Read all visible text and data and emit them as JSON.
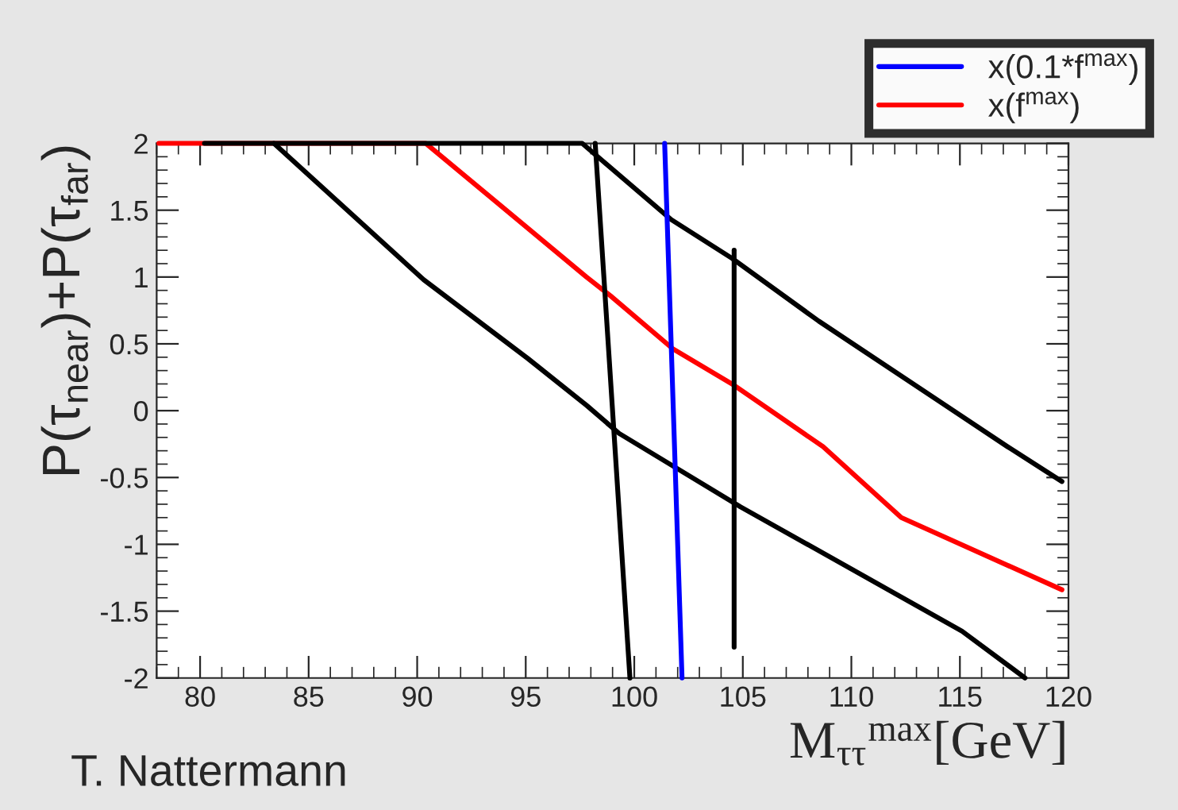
{
  "chart_data": {
    "type": "line",
    "xlabel": "M$_{ττ}$$^{max}$[GeV]",
    "ylabel": "P(τ$_{near}$)+P(τ$_{far}$)",
    "annotations": [
      "T. Nattermann"
    ],
    "xlim": [
      78,
      120
    ],
    "ylim": [
      -2,
      2
    ],
    "xticks": [
      80,
      85,
      90,
      95,
      100,
      105,
      110,
      115,
      120
    ],
    "yticks": [
      -2,
      -1.5,
      -1,
      -0.5,
      0,
      0.5,
      1,
      1.5,
      2
    ],
    "grid": false,
    "legend": "top right",
    "marker": "none",
    "line_style": "solid",
    "series": [
      {
        "color": "#ff0000",
        "x": [
          78.1,
          80.2,
          90.4,
          97.8,
          98.9,
          101.8,
          104.6,
          108.7,
          112.3,
          119.7
        ],
        "values": [
          2,
          2,
          2,
          1.0,
          0.86,
          0.46,
          0.19,
          -0.27,
          -0.8,
          -1.34
        ],
        "name": "x(f$^{max}$)"
      },
      {
        "color": "#000000",
        "x": [
          80.2,
          83.4,
          90.3,
          95.1,
          97.8,
          99.3,
          104.9,
          115.1,
          118.0
        ],
        "values": [
          2,
          2,
          0.98,
          0.39,
          0.04,
          -0.17,
          -0.72,
          -1.65,
          -2
        ]
      },
      {
        "color": "#000000",
        "x": [
          83.4,
          97.6,
          101.7,
          104.5,
          108.5,
          117.2,
          119.7
        ],
        "values": [
          2,
          2,
          1.43,
          1.14,
          0.67,
          -0.27,
          -0.53
        ]
      },
      {
        "color": "#000000",
        "x": [
          98.2,
          99.8
        ],
        "values": [
          2,
          -2
        ]
      },
      {
        "color": "#0000ff",
        "x": [
          101.4,
          102.2
        ],
        "values": [
          2,
          -2
        ],
        "name": "x(0.1*f$^{max}$)"
      },
      {
        "color": "#000000",
        "x": [
          104.6,
          104.6
        ],
        "values": [
          1.2,
          -1.77
        ]
      }
    ]
  }
}
